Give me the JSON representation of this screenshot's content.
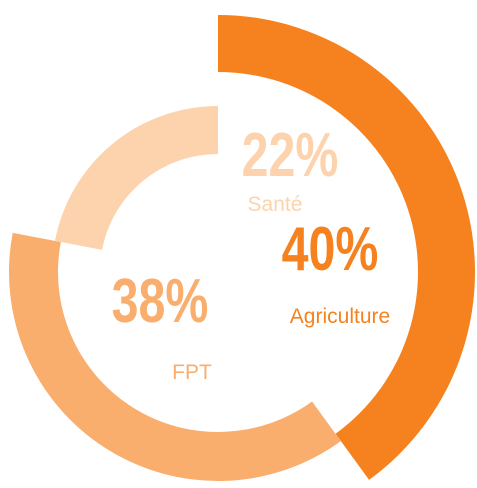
{
  "chart_data": {
    "type": "radial_bar",
    "categories": [
      "Agriculture",
      "FPT",
      "Santé"
    ],
    "values": [
      40,
      38,
      22
    ],
    "value_labels": [
      "40%",
      "38%",
      "22%"
    ],
    "colors": [
      "#f5821f",
      "#f9ae6e",
      "#fdd3ae"
    ]
  }
}
